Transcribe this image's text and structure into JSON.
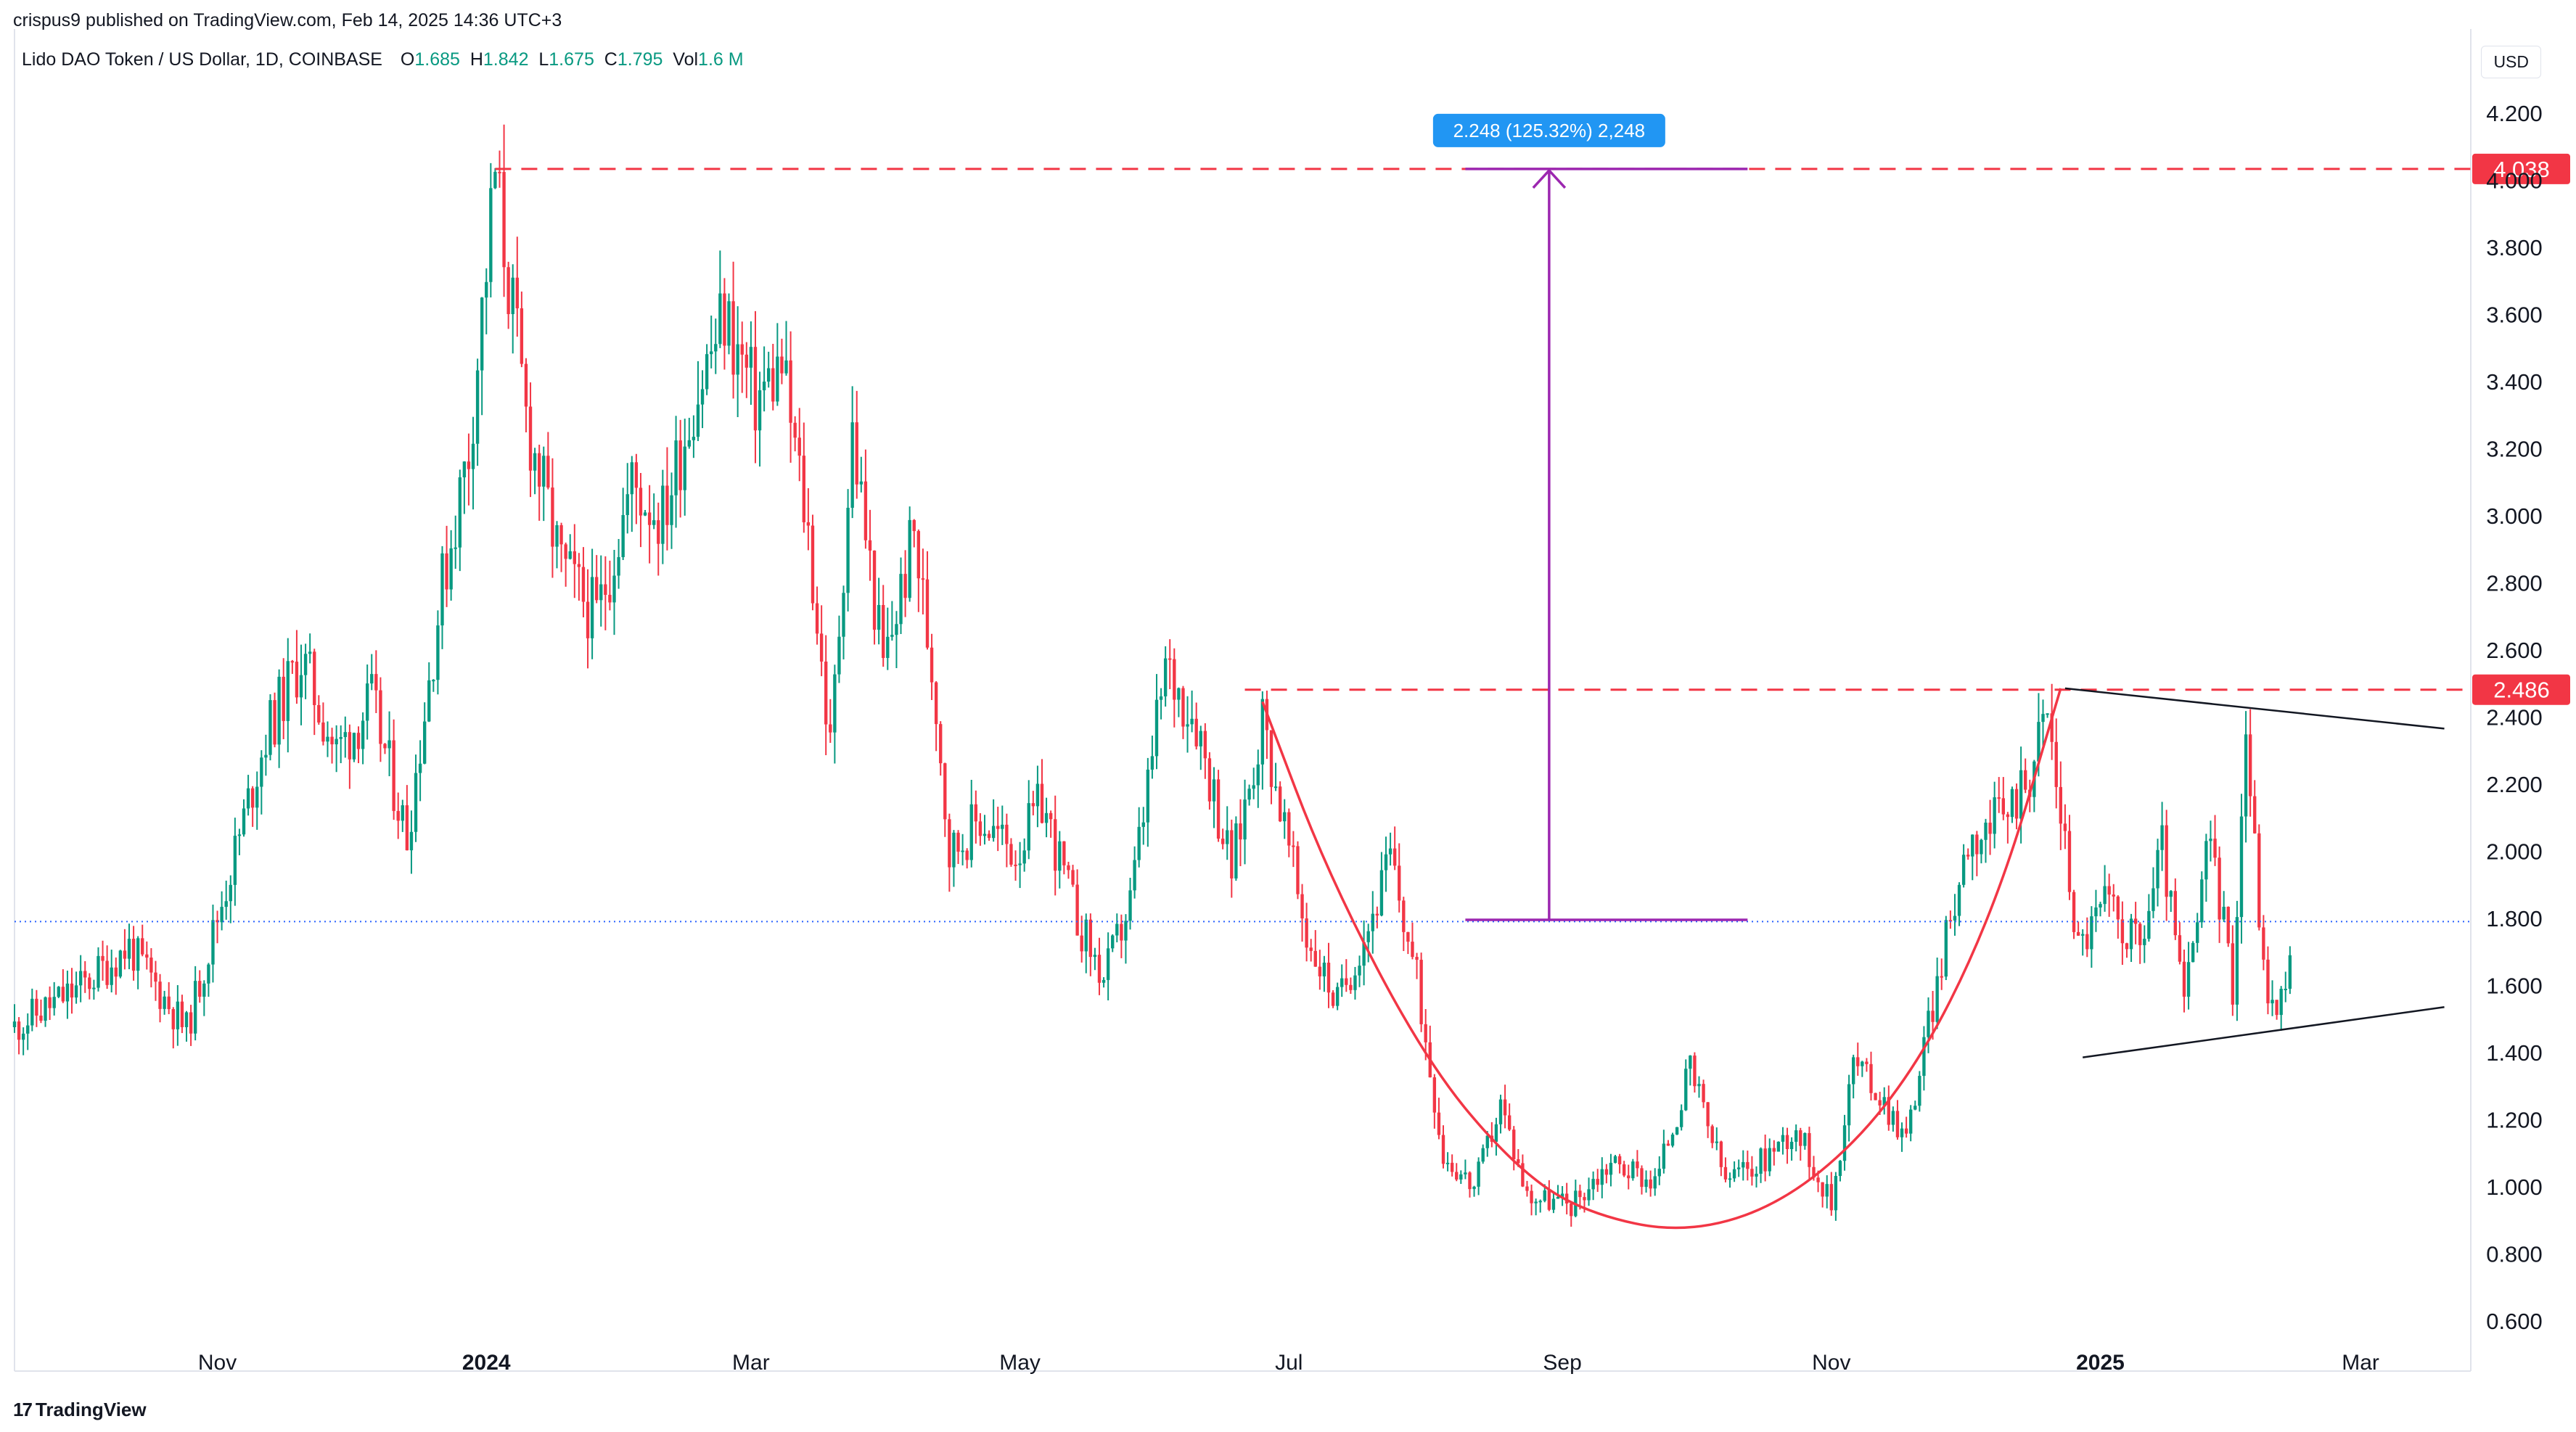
{
  "header": {
    "published": "crispus9 published on TradingView.com, Feb 14, 2025 14:36 UTC+3"
  },
  "legend": {
    "symbol": "Lido DAO Token / US Dollar, 1D, COINBASE",
    "o_label": "O",
    "o_value": "1.685",
    "h_label": "H",
    "h_value": "1.842",
    "l_label": "L",
    "l_value": "1.675",
    "c_label": "C",
    "c_value": "1.795",
    "vol_label": "Vol",
    "vol_value": "1.6 M"
  },
  "currency": "USD",
  "footer": {
    "brand": "TradingView",
    "logo": "17"
  },
  "chart_data": {
    "type": "candlestick",
    "y_axis": {
      "min": 0.5,
      "max": 4.3,
      "ticks": [
        "4.200",
        "4.000",
        "3.800",
        "3.600",
        "3.400",
        "3.200",
        "3.000",
        "2.800",
        "2.600",
        "2.400",
        "2.200",
        "2.000",
        "1.800",
        "1.600",
        "1.400",
        "1.200",
        "1.000",
        "0.800",
        "0.600"
      ]
    },
    "x_labels": [
      {
        "label": "Nov",
        "date": "2023-11-01",
        "bold": false
      },
      {
        "label": "2024",
        "date": "2024-01-01",
        "bold": true
      },
      {
        "label": "Mar",
        "date": "2024-03-01",
        "bold": false
      },
      {
        "label": "May",
        "date": "2024-05-01",
        "bold": false
      },
      {
        "label": "Jul",
        "date": "2024-07-01",
        "bold": false
      },
      {
        "label": "Sep",
        "date": "2024-09-01",
        "bold": false
      },
      {
        "label": "Nov",
        "date": "2024-11-01",
        "bold": false
      },
      {
        "label": "2025",
        "date": "2025-01-01",
        "bold": true
      },
      {
        "label": "Mar",
        "date": "2025-03-01",
        "bold": false
      }
    ],
    "x_range": [
      "2023-09-16",
      "2025-03-26"
    ],
    "colors": {
      "up": "#089981",
      "down": "#f23645",
      "annotation": "#f23645",
      "measure": "#9c27b0",
      "measure_label_bg": "#2196f3"
    },
    "price_lines": [
      {
        "value": 4.038,
        "label": "4.038",
        "start": "2024-01-03"
      },
      {
        "value": 2.486,
        "label": "2.486",
        "start": "2024-06-21"
      }
    ],
    "last_price": 1.795,
    "measure": {
      "label": "2.248 (125.32%) 2,248",
      "from": 1.8,
      "to": 4.038,
      "x_start": "2024-08-10",
      "x_end": "2024-10-13",
      "x_mid": "2024-08-29"
    },
    "cup": {
      "points": [
        [
          "2024-06-25",
          2.45
        ],
        [
          "2024-07-10",
          1.93
        ],
        [
          "2024-08-01",
          1.38
        ],
        [
          "2024-08-20",
          1.08
        ],
        [
          "2024-09-05",
          0.93
        ],
        [
          "2024-09-30",
          0.86
        ],
        [
          "2024-10-25",
          0.98
        ],
        [
          "2024-11-18",
          1.3
        ],
        [
          "2024-12-08",
          1.82
        ],
        [
          "2024-12-23",
          2.49
        ]
      ]
    },
    "triangle": {
      "upper": [
        [
          "2024-12-24",
          2.49
        ],
        [
          "2025-03-20",
          2.37
        ]
      ],
      "lower": [
        [
          "2024-12-28",
          1.39
        ],
        [
          "2025-03-20",
          1.54
        ]
      ]
    },
    "anchors": [
      [
        "2023-09-16",
        1.48
      ],
      [
        "2023-10-01",
        1.6
      ],
      [
        "2023-10-12",
        1.72
      ],
      [
        "2023-10-25",
        1.47
      ],
      [
        "2023-11-05",
        2.0
      ],
      [
        "2023-11-12",
        2.35
      ],
      [
        "2023-11-20",
        2.58
      ],
      [
        "2023-11-28",
        2.3
      ],
      [
        "2023-12-06",
        2.45
      ],
      [
        "2023-12-14",
        2.05
      ],
      [
        "2023-12-22",
        2.8
      ],
      [
        "2023-12-28",
        3.2
      ],
      [
        "2024-01-03",
        4.02
      ],
      [
        "2024-01-10",
        3.3
      ],
      [
        "2024-01-18",
        2.85
      ],
      [
        "2024-01-26",
        2.7
      ],
      [
        "2024-02-03",
        3.1
      ],
      [
        "2024-02-10",
        3.0
      ],
      [
        "2024-02-17",
        3.35
      ],
      [
        "2024-02-24",
        3.6
      ],
      [
        "2024-03-02",
        3.35
      ],
      [
        "2024-03-08",
        3.45
      ],
      [
        "2024-03-14",
        2.95
      ],
      [
        "2024-03-19",
        2.3
      ],
      [
        "2024-03-24",
        3.25
      ],
      [
        "2024-03-31",
        2.55
      ],
      [
        "2024-04-07",
        2.95
      ],
      [
        "2024-04-12",
        2.45
      ],
      [
        "2024-04-15",
        2.0
      ],
      [
        "2024-04-22",
        2.1
      ],
      [
        "2024-04-30",
        2.0
      ],
      [
        "2024-05-06",
        2.15
      ],
      [
        "2024-05-14",
        1.8
      ],
      [
        "2024-05-20",
        1.62
      ],
      [
        "2024-05-26",
        1.85
      ],
      [
        "2024-06-03",
        2.55
      ],
      [
        "2024-06-10",
        2.4
      ],
      [
        "2024-06-18",
        1.95
      ],
      [
        "2024-06-25",
        2.4
      ],
      [
        "2024-07-05",
        1.75
      ],
      [
        "2024-07-12",
        1.55
      ],
      [
        "2024-07-20",
        1.82
      ],
      [
        "2024-07-24",
        1.98
      ],
      [
        "2024-07-30",
        1.62
      ],
      [
        "2024-08-05",
        1.1
      ],
      [
        "2024-08-12",
        1.0
      ],
      [
        "2024-08-18",
        1.25
      ],
      [
        "2024-08-24",
        0.98
      ],
      [
        "2024-09-03",
        0.95
      ],
      [
        "2024-09-12",
        1.08
      ],
      [
        "2024-09-22",
        1.02
      ],
      [
        "2024-09-30",
        1.35
      ],
      [
        "2024-10-08",
        1.02
      ],
      [
        "2024-10-16",
        1.08
      ],
      [
        "2024-10-24",
        1.18
      ],
      [
        "2024-11-01",
        0.95
      ],
      [
        "2024-11-06",
        1.38
      ],
      [
        "2024-11-12",
        1.28
      ],
      [
        "2024-11-18",
        1.15
      ],
      [
        "2024-11-24",
        1.55
      ],
      [
        "2024-12-02",
        2.05
      ],
      [
        "2024-12-10",
        2.1
      ],
      [
        "2024-12-16",
        2.25
      ],
      [
        "2024-12-20",
        2.42
      ],
      [
        "2024-12-27",
        1.72
      ],
      [
        "2025-01-02",
        1.85
      ],
      [
        "2025-01-10",
        1.72
      ],
      [
        "2025-01-15",
        2.02
      ],
      [
        "2025-01-20",
        1.55
      ],
      [
        "2025-01-26",
        2.05
      ],
      [
        "2025-01-31",
        1.6
      ],
      [
        "2025-02-03",
        2.38
      ],
      [
        "2025-02-07",
        1.65
      ],
      [
        "2025-02-10",
        1.5
      ],
      [
        "2025-02-14",
        1.8
      ]
    ]
  }
}
